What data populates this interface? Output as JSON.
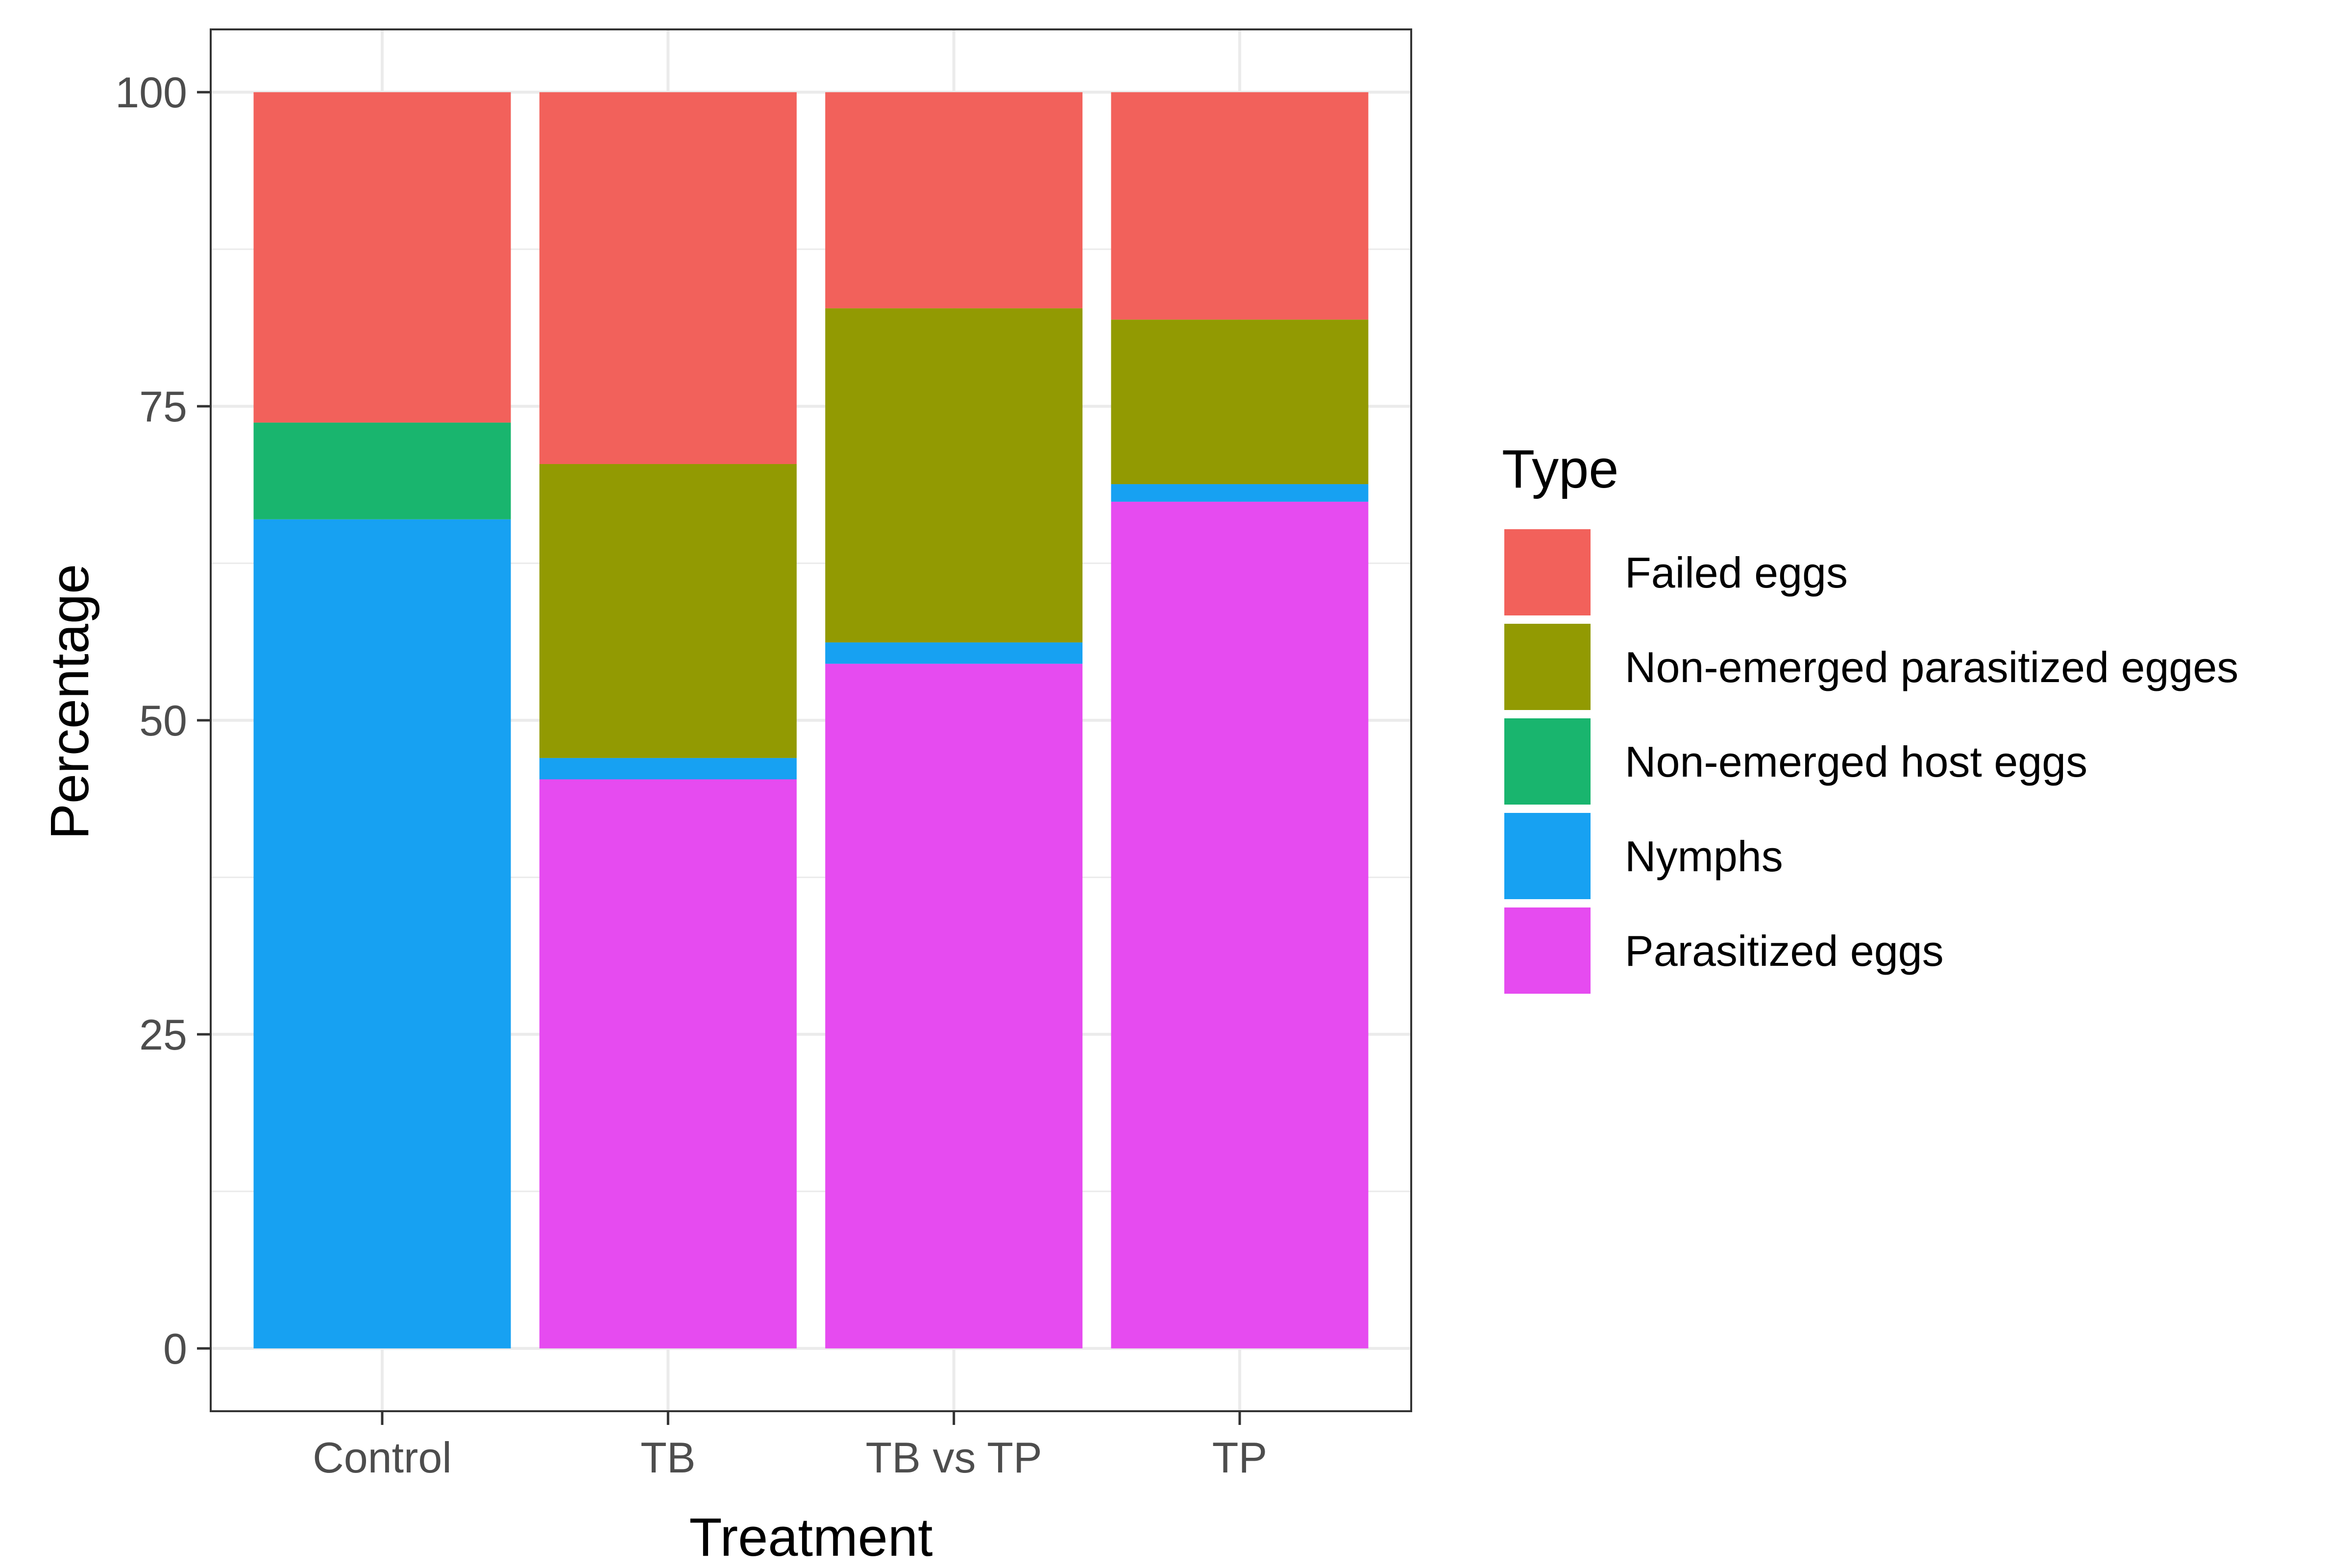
{
  "chart_data": {
    "type": "bar",
    "stacked": true,
    "xlabel": "Treatment",
    "ylabel": "Percentage",
    "ylim": [
      -5,
      105
    ],
    "yticks": [
      0,
      25,
      50,
      75,
      100
    ],
    "grid": true,
    "legend_title": "Type",
    "legend_position": "right",
    "categories": [
      "Control",
      "TB",
      "TB vs TP",
      "TP"
    ],
    "series": [
      {
        "name": "Parasitized eggs",
        "color": "#E64BF0",
        "values": [
          0,
          45.3,
          54.5,
          67.4
        ]
      },
      {
        "name": "Nymphs",
        "color": "#17A1F2",
        "values": [
          66,
          1.7,
          1.7,
          1.4
        ]
      },
      {
        "name": "Non-emerged host eggs",
        "color": "#19B56E",
        "values": [
          7.7,
          0,
          0,
          0
        ]
      },
      {
        "name": "Non-emerged parasitized egges",
        "color": "#929A02",
        "values": [
          0,
          23.4,
          26.6,
          13.1
        ]
      },
      {
        "name": "Failed eggs",
        "color": "#F2615B",
        "values": [
          26.3,
          29.6,
          17.2,
          18.1
        ]
      }
    ],
    "legend_order": [
      "Failed eggs",
      "Non-emerged parasitized egges",
      "Non-emerged host eggs",
      "Nymphs",
      "Parasitized eggs"
    ]
  }
}
